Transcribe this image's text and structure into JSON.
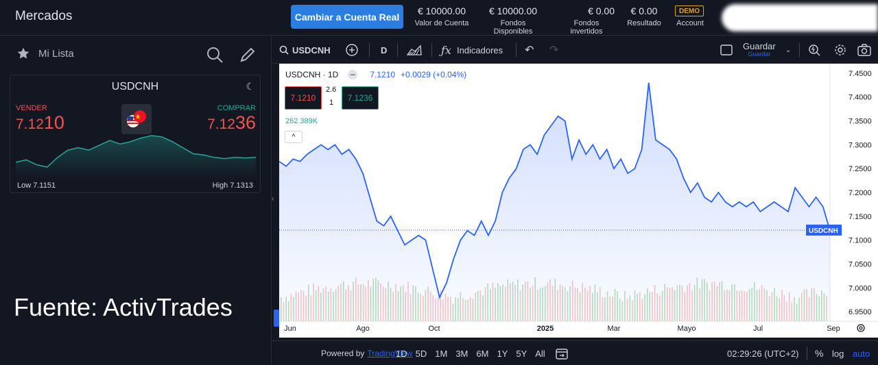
{
  "topbar": {
    "title": "Mercados",
    "cta": "Cambiar a Cuenta Real",
    "stats": [
      {
        "value": "€ 10000.00",
        "label": "Valor de Cuenta"
      },
      {
        "value": "€ 10000.00",
        "label": "Fondos Disponibles"
      },
      {
        "value": "€ 0.00",
        "label": "Fondos invertidos"
      },
      {
        "value": "€ 0.00",
        "label": "Resultado"
      }
    ],
    "demo_badge": "DEMO",
    "demo_label": "Account"
  },
  "watchlist": {
    "title": "Mi Lista",
    "symbol": "USDCNH",
    "sell_label": "VENDER",
    "buy_label": "COMPRAR",
    "sell_small": "7.12",
    "sell_big": "10",
    "buy_small": "7.12",
    "buy_big": "36",
    "low": "Low 7.1151",
    "high": "High 7.1313",
    "spark": [
      7.119,
      7.12,
      7.118,
      7.117,
      7.121,
      7.124,
      7.125,
      7.124,
      7.126,
      7.128,
      7.1265,
      7.1275,
      7.129,
      7.13,
      7.1295,
      7.1275,
      7.125,
      7.1225,
      7.122,
      7.121,
      7.1205,
      7.121,
      7.1208,
      7.121
    ]
  },
  "watermark": "Fuente: ActivTrades",
  "toolbar": {
    "symbol": "USDCNH",
    "interval": "D",
    "indicators": "Indicadores",
    "save": "Guardar",
    "save_sub": "Guardar"
  },
  "chart_legend": {
    "symbol": "USDCNH · 1D",
    "price": "7.1210",
    "change": "+0.0029 (+0.04%)",
    "bid": "7.1210",
    "spread_top": "2.6",
    "spread_bottom": "1",
    "ask": "7.1236",
    "volume": "262.389K",
    "last_tag": "USDCNH"
  },
  "chart_data": {
    "type": "area",
    "ylim": [
      6.93,
      7.47
    ],
    "y_ticks": [
      "7.4500",
      "7.4000",
      "7.3500",
      "7.3000",
      "7.2500",
      "7.2000",
      "7.1500",
      "7.1000",
      "7.0500",
      "7.0000",
      "6.9500"
    ],
    "x_ticks": [
      "Jun",
      "Ago",
      "Oct",
      "2025",
      "Mar",
      "Mayo",
      "Jul",
      "Sep"
    ],
    "last_price": 7.121,
    "series": [
      {
        "values": [
          7.265,
          7.255,
          7.27,
          7.265,
          7.28,
          7.29,
          7.3,
          7.29,
          7.3,
          7.28,
          7.29,
          7.27,
          7.24,
          7.19,
          7.14,
          7.13,
          7.15,
          7.12,
          7.09,
          7.1,
          7.11,
          7.1,
          7.04,
          6.98,
          7.01,
          7.06,
          7.1,
          7.12,
          7.11,
          7.14,
          7.11,
          7.14,
          7.2,
          7.23,
          7.25,
          7.29,
          7.3,
          7.28,
          7.32,
          7.34,
          7.36,
          7.35,
          7.27,
          7.31,
          7.28,
          7.3,
          7.27,
          7.29,
          7.25,
          7.27,
          7.24,
          7.25,
          7.29,
          7.43,
          7.31,
          7.3,
          7.29,
          7.27,
          7.23,
          7.2,
          7.22,
          7.19,
          7.18,
          7.2,
          7.18,
          7.17,
          7.18,
          7.17,
          7.18,
          7.16,
          7.17,
          7.18,
          7.17,
          7.16,
          7.21,
          7.19,
          7.17,
          7.19,
          7.17,
          7.12
        ]
      }
    ]
  },
  "bottombar": {
    "powered": "Powered by",
    "tv": "TradingView",
    "ranges": [
      "1D",
      "5D",
      "1M",
      "3M",
      "6M",
      "1Y",
      "5Y",
      "All"
    ],
    "time": "02:29:26 (UTC+2)",
    "pct": "%",
    "log": "log",
    "auto": "auto"
  },
  "colors": {
    "accent": "#2962ff",
    "up": "#26a69a",
    "down": "#ef5350",
    "line": "#2962ff"
  }
}
